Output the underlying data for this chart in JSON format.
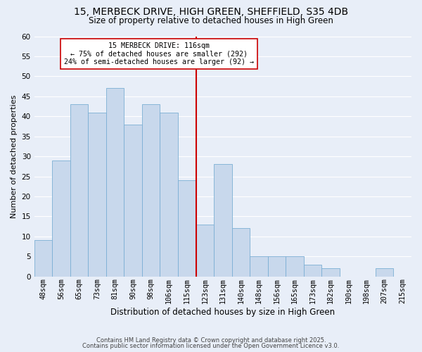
{
  "title": "15, MERBECK DRIVE, HIGH GREEN, SHEFFIELD, S35 4DB",
  "subtitle": "Size of property relative to detached houses in High Green",
  "xlabel": "Distribution of detached houses by size in High Green",
  "ylabel": "Number of detached properties",
  "bar_color": "#c8d8ec",
  "bar_edge_color": "#7bafd4",
  "background_color": "#e8eef8",
  "grid_color": "#ffffff",
  "bin_labels": [
    "48sqm",
    "56sqm",
    "65sqm",
    "73sqm",
    "81sqm",
    "90sqm",
    "98sqm",
    "106sqm",
    "115sqm",
    "123sqm",
    "131sqm",
    "140sqm",
    "148sqm",
    "156sqm",
    "165sqm",
    "173sqm",
    "182sqm",
    "190sqm",
    "198sqm",
    "207sqm",
    "215sqm"
  ],
  "bar_heights": [
    9,
    29,
    43,
    41,
    47,
    38,
    43,
    41,
    24,
    13,
    28,
    12,
    5,
    5,
    5,
    3,
    2,
    0,
    0,
    2,
    0
  ],
  "vline_color": "#cc0000",
  "vline_label": "15 MERBECK DRIVE: 116sqm",
  "annotation_line1": "← 75% of detached houses are smaller (292)",
  "annotation_line2": "24% of semi-detached houses are larger (92) →",
  "ylim": [
    0,
    60
  ],
  "yticks": [
    0,
    5,
    10,
    15,
    20,
    25,
    30,
    35,
    40,
    45,
    50,
    55,
    60
  ],
  "footer_line1": "Contains HM Land Registry data © Crown copyright and database right 2025.",
  "footer_line2": "Contains public sector information licensed under the Open Government Licence v3.0."
}
